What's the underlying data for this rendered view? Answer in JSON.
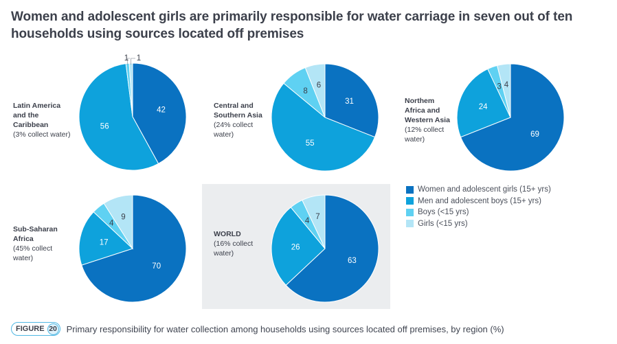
{
  "title": "Women and adolescent girls are primarily responsible for water carriage in seven out of ten households using sources located off premises",
  "colors": {
    "women": "#0a72c1",
    "men": "#0ea2dc",
    "boys": "#5fd1f2",
    "girls": "#b3e5f6",
    "label_dark": "#3b3f4a",
    "label_light": "#ffffff",
    "world_bg": "#ebedef"
  },
  "legend": [
    {
      "key": "women",
      "label": "Women and adolescent girls (15+ yrs)"
    },
    {
      "key": "men",
      "label": "Men and adolescent boys (15+ yrs)"
    },
    {
      "key": "boys",
      "label": "Boys (<15 yrs)"
    },
    {
      "key": "girls",
      "label": "Girls (<15 yrs)"
    }
  ],
  "caption": {
    "figure_word": "FIGURE",
    "figure_number": "20",
    "text": "Primary responsibility for water collection among households using sources located off premises, by region (%)"
  },
  "regions": [
    {
      "name": "Latin America and the Caribbean",
      "name_lines": [
        "Latin America",
        "and the",
        "Caribbean"
      ],
      "note": "(3% collect water)"
    },
    {
      "name": "Central and Southern Asia",
      "name_lines": [
        "Central and",
        "Southern Asia"
      ],
      "note_lines": [
        "(24% collect",
        "water)"
      ]
    },
    {
      "name": "Northem Africa and Western Asia",
      "name_lines": [
        "Northem",
        "Africa and",
        "Western Asia"
      ],
      "note_lines": [
        "(12% collect",
        "water)"
      ]
    },
    {
      "name": "Sub-Saharan Africa",
      "name_lines": [
        "Sub-Saharan",
        "Africa"
      ],
      "note_lines": [
        "(45% collect",
        "water)"
      ]
    },
    {
      "name": "WORLD",
      "name_lines": [
        "WORLD"
      ],
      "note_lines": [
        "(16% collect",
        "water)"
      ]
    }
  ],
  "chart_data": [
    {
      "type": "pie",
      "title": "Latin America and the Caribbean (3% collect water)",
      "categories": [
        "Women and adolescent girls (15+ yrs)",
        "Men and adolescent boys (15+ yrs)",
        "Boys (<15 yrs)",
        "Girls (<15 yrs)"
      ],
      "values": [
        42,
        56,
        1,
        1
      ],
      "labels": [
        "42",
        "56",
        "1",
        "1"
      ]
    },
    {
      "type": "pie",
      "title": "Central and Southern Asia (24% collect water)",
      "categories": [
        "Women and adolescent girls (15+ yrs)",
        "Men and adolescent boys (15+ yrs)",
        "Boys (<15 yrs)",
        "Girls (<15 yrs)"
      ],
      "values": [
        31,
        55,
        8,
        6
      ],
      "labels": [
        "31",
        "55",
        "8",
        "6"
      ]
    },
    {
      "type": "pie",
      "title": "Northem Africa and Western Asia (12% collect water)",
      "categories": [
        "Women and adolescent girls (15+ yrs)",
        "Men and adolescent boys (15+ yrs)",
        "Boys (<15 yrs)",
        "Girls (<15 yrs)"
      ],
      "values": [
        69,
        24,
        3,
        4
      ],
      "labels": [
        "69",
        "24",
        "3",
        "4"
      ]
    },
    {
      "type": "pie",
      "title": "Sub-Saharan Africa (45% collect water)",
      "categories": [
        "Women and adolescent girls (15+ yrs)",
        "Men and adolescent boys (15+ yrs)",
        "Boys (<15 yrs)",
        "Girls (<15 yrs)"
      ],
      "values": [
        70,
        17,
        4,
        9
      ],
      "labels": [
        "70",
        "17",
        "4",
        "9"
      ]
    },
    {
      "type": "pie",
      "title": "WORLD (16% collect water)",
      "categories": [
        "Women and adolescent girls (15+ yrs)",
        "Men and adolescent boys (15+ yrs)",
        "Boys (<15 yrs)",
        "Girls (<15 yrs)"
      ],
      "values": [
        63,
        26,
        4,
        7
      ],
      "labels": [
        "63",
        "26",
        "4",
        "7"
      ]
    }
  ]
}
